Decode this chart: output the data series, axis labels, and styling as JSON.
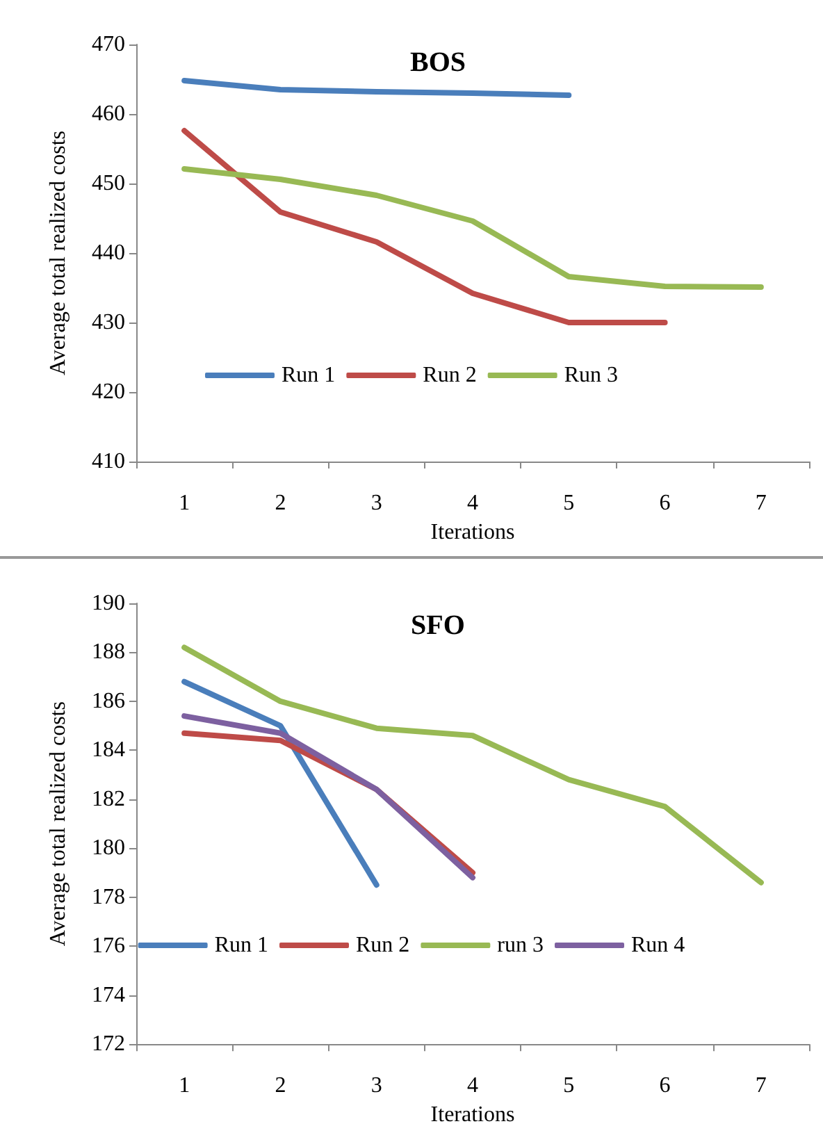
{
  "chart_data": [
    {
      "type": "line",
      "title": "BOS",
      "xlabel": "Iterations",
      "ylabel": "Average total realized costs",
      "categories": [
        "1",
        "2",
        "3",
        "4",
        "5",
        "6",
        "7"
      ],
      "ylim": [
        410,
        470
      ],
      "yticks": [
        410,
        420,
        430,
        440,
        450,
        460,
        470
      ],
      "grid": false,
      "legend": "bottom",
      "marker": "none",
      "series": [
        {
          "name": "Run 1",
          "color": "#4a7ebb",
          "values": [
            464.8,
            463.5,
            463.2,
            463.0,
            462.7,
            null,
            null
          ]
        },
        {
          "name": "Run 2",
          "color": "#be4b48",
          "values": [
            457.6,
            445.9,
            441.6,
            434.2,
            430.0,
            430.0,
            null
          ]
        },
        {
          "name": "Run 3",
          "color": "#98b954",
          "values": [
            452.1,
            450.6,
            448.3,
            444.6,
            436.6,
            435.2,
            435.1
          ]
        }
      ]
    },
    {
      "type": "line",
      "title": "SFO",
      "xlabel": "Iterations",
      "ylabel": "Average total realized costs",
      "categories": [
        "1",
        "2",
        "3",
        "4",
        "5",
        "6",
        "7"
      ],
      "ylim": [
        172,
        190
      ],
      "yticks": [
        172,
        174,
        176,
        178,
        180,
        182,
        184,
        186,
        188,
        190
      ],
      "grid": false,
      "legend": "bottom",
      "marker": "none",
      "series": [
        {
          "name": "Run 1",
          "color": "#4a7ebb",
          "values": [
            186.8,
            185.0,
            178.5,
            null,
            null,
            null,
            null
          ]
        },
        {
          "name": "Run 2",
          "color": "#be4b48",
          "values": [
            184.7,
            184.4,
            182.4,
            179.0,
            null,
            null,
            null
          ]
        },
        {
          "name": "run 3",
          "color": "#98b954",
          "values": [
            188.2,
            186.0,
            184.9,
            184.6,
            182.8,
            181.7,
            178.6
          ]
        },
        {
          "name": "Run 4",
          "color": "#7d60a0",
          "values": [
            185.4,
            184.7,
            182.4,
            178.8,
            null,
            null,
            null
          ]
        }
      ]
    }
  ]
}
